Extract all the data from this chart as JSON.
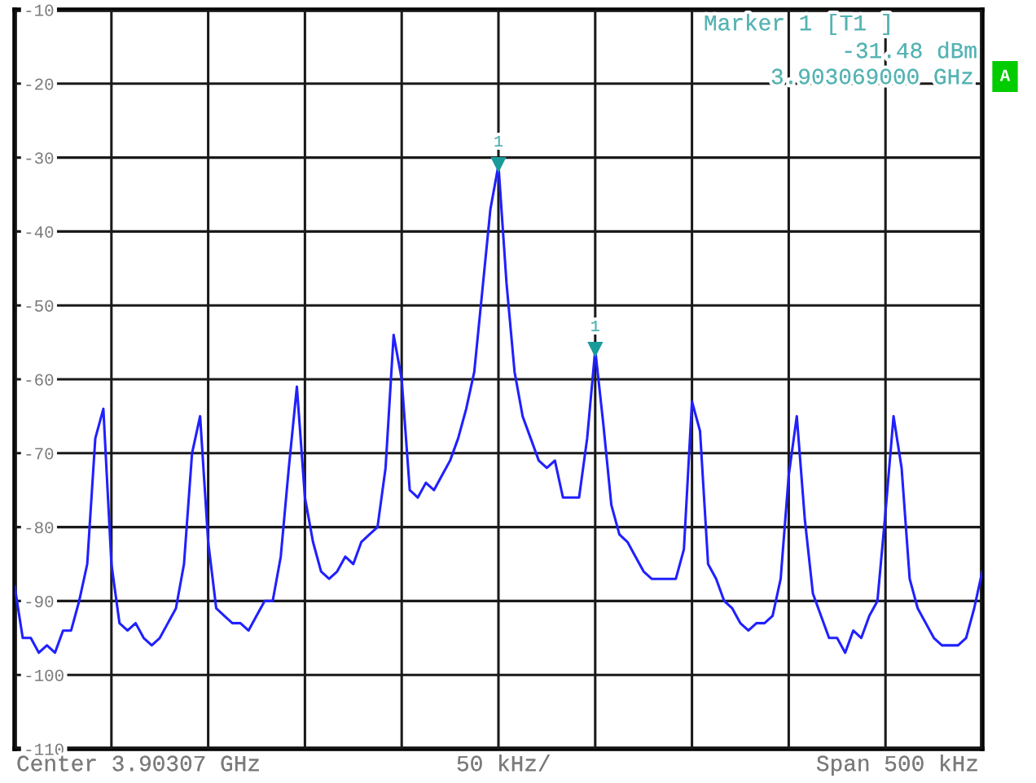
{
  "chart_data": {
    "type": "line",
    "categories": [
      null,
      null,
      null,
      null,
      null,
      null,
      null,
      null,
      null,
      null,
      null,
      null,
      null,
      null,
      null,
      null,
      null,
      null,
      null,
      null,
      null,
      null,
      null,
      null,
      null,
      null,
      null,
      null,
      null,
      null,
      null,
      null,
      null,
      null,
      null,
      null,
      null,
      null,
      null,
      null,
      null,
      null,
      null,
      null,
      null,
      null,
      null,
      null,
      null,
      null,
      null,
      null,
      null,
      null,
      null,
      null,
      null,
      null,
      null,
      null,
      null,
      null,
      null,
      null,
      null,
      null,
      null,
      null,
      null,
      null,
      null,
      null,
      null,
      null,
      null,
      null,
      null,
      null,
      null,
      null,
      null,
      null,
      null,
      null,
      null,
      null,
      null,
      null,
      null,
      null,
      null,
      null,
      null,
      null,
      null,
      null,
      null,
      null,
      null,
      null,
      null,
      null,
      null,
      null,
      null,
      null,
      null,
      null,
      null,
      null,
      null,
      null,
      null,
      null,
      null,
      null,
      null,
      null,
      null,
      null,
      null
    ],
    "series": [
      {
        "color": "#2020ff",
        "values": [
          -88,
          -95,
          -95,
          -97,
          -96,
          -97,
          -94,
          -94,
          -90,
          -85,
          -68,
          -64,
          -85,
          -93,
          -94,
          -93,
          -95,
          -96,
          -95,
          -93,
          -91,
          -85,
          -70,
          -65,
          -82,
          -91,
          -92,
          -93,
          -93,
          -94,
          -92,
          -90,
          -90,
          -84,
          -72,
          -61,
          -76,
          -82,
          -86,
          -87,
          -86,
          -84,
          -85,
          -82,
          -81,
          -80,
          -72,
          -54,
          -60,
          -75,
          -76,
          -74,
          -75,
          -73,
          -71,
          -68,
          -64,
          -59,
          -48,
          -37,
          -31,
          -47,
          -59,
          -65,
          -68,
          -71,
          -72,
          -71,
          -76,
          -76,
          -76,
          -68,
          -56,
          -66,
          -77,
          -81,
          -82,
          -84,
          -86,
          -87,
          -87,
          -87,
          -87,
          -83,
          -63,
          -67,
          -85,
          -87,
          -90,
          -91,
          -93,
          -94,
          -93,
          -93,
          -92,
          -87,
          -73,
          -65,
          -79,
          -89,
          -92,
          -95,
          -95,
          -97,
          -94,
          -95,
          -92,
          -90,
          -78,
          -65,
          -72,
          -87,
          -91,
          -93,
          -95,
          -96,
          -96,
          -96,
          -95,
          -91,
          -86
        ]
      },
      {
        "type": "scatter",
        "color": "#1b9a9a",
        "marker": "triangle",
        "values": [
          null,
          null,
          null,
          null,
          null,
          null,
          null,
          null,
          null,
          null,
          null,
          null,
          null,
          null,
          null,
          null,
          null,
          null,
          null,
          null,
          null,
          null,
          null,
          null,
          null,
          null,
          null,
          null,
          null,
          null,
          null,
          null,
          null,
          null,
          null,
          null,
          null,
          null,
          null,
          null,
          null,
          null,
          null,
          null,
          null,
          null,
          null,
          null,
          null,
          null,
          null,
          null,
          null,
          null,
          null,
          null,
          null,
          null,
          null,
          null,
          -31,
          null,
          null,
          null,
          null,
          null,
          null,
          null,
          null,
          null,
          null,
          null,
          -56,
          null,
          null,
          null,
          null,
          null,
          null,
          null,
          null,
          null,
          null,
          null,
          null,
          null,
          null,
          null,
          null,
          null,
          null,
          null,
          null,
          null,
          null,
          null,
          null,
          null,
          null,
          null,
          null,
          null,
          null,
          null,
          null,
          null,
          null,
          null,
          null,
          null,
          null,
          null,
          null,
          null,
          null,
          null,
          null,
          null,
          null,
          null,
          null
        ]
      }
    ],
    "ylim": [
      -110,
      -10
    ],
    "yticks": [
      -10,
      -20,
      -30,
      -40,
      -50,
      -60,
      -70,
      -80,
      -90,
      -100,
      -110
    ],
    "tick_labels": "y",
    "grid": true,
    "annotations": [
      "Marker 1 [T1 ]",
      "-31.48 dBm",
      "3.903069000 GHz",
      "A",
      "1",
      "1",
      "Center 3.90307 GHz",
      "50 kHz/",
      "Span 500 kHz"
    ]
  }
}
